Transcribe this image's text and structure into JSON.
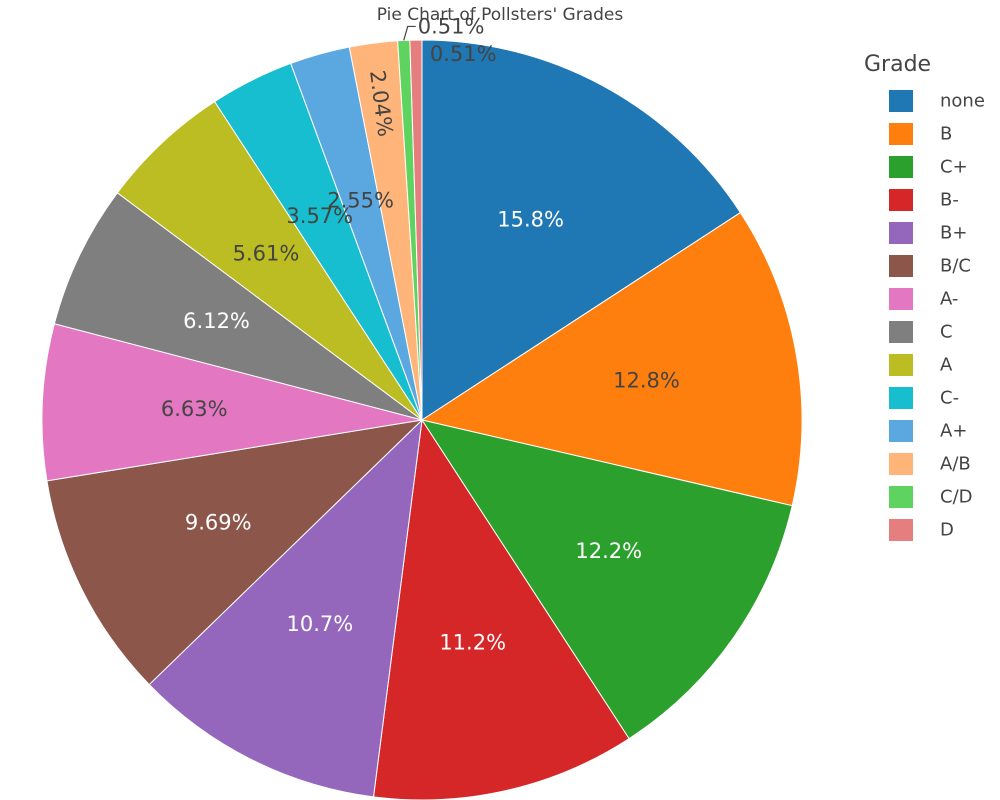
{
  "chart_data": {
    "type": "pie",
    "title": "Pie Chart of Pollsters' Grades",
    "legend_title": "Grade",
    "legend_position": "right",
    "direction": "clockwise",
    "start_angle_deg": 0,
    "slices": [
      {
        "label": "none",
        "percent": 15.8,
        "display": "15.8%",
        "color": "#1f77b4",
        "text_color": "#ffffff"
      },
      {
        "label": "B",
        "percent": 12.8,
        "display": "12.8%",
        "color": "#ff7f0e",
        "text_color": "#444444"
      },
      {
        "label": "C+",
        "percent": 12.2,
        "display": "12.2%",
        "color": "#2ca02c",
        "text_color": "#ffffff"
      },
      {
        "label": "B-",
        "percent": 11.2,
        "display": "11.2%",
        "color": "#d62728",
        "text_color": "#ffffff"
      },
      {
        "label": "B+",
        "percent": 10.7,
        "display": "10.7%",
        "color": "#9467bd",
        "text_color": "#ffffff"
      },
      {
        "label": "B/C",
        "percent": 9.69,
        "display": "9.69%",
        "color": "#8c564b",
        "text_color": "#ffffff"
      },
      {
        "label": "A-",
        "percent": 6.63,
        "display": "6.63%",
        "color": "#e377c2",
        "text_color": "#444444"
      },
      {
        "label": "C",
        "percent": 6.12,
        "display": "6.12%",
        "color": "#7f7f7f",
        "text_color": "#ffffff"
      },
      {
        "label": "A",
        "percent": 5.61,
        "display": "5.61%",
        "color": "#bcbd22",
        "text_color": "#444444"
      },
      {
        "label": "C-",
        "percent": 3.57,
        "display": "3.57%",
        "color": "#17becf",
        "text_color": "#444444"
      },
      {
        "label": "A+",
        "percent": 2.55,
        "display": "2.55%",
        "color": "#5ba8e0",
        "text_color": "#444444"
      },
      {
        "label": "A/B",
        "percent": 2.04,
        "display": "2.04%",
        "color": "#ffb57a",
        "text_color": "#444444"
      },
      {
        "label": "C/D",
        "percent": 0.51,
        "display": "0.51%",
        "color": "#5fd35f",
        "text_color": "#444444"
      },
      {
        "label": "D",
        "percent": 0.51,
        "display": "0.51%",
        "color": "#e57f7f",
        "text_color": "#444444"
      }
    ]
  }
}
